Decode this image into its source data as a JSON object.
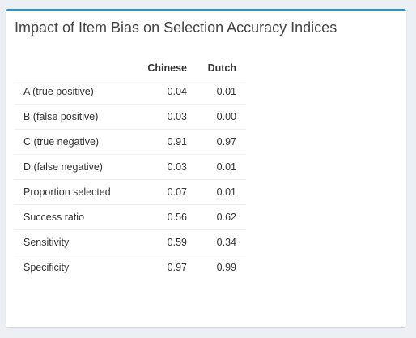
{
  "panel": {
    "title": "Impact of Item Bias on Selection Accuracy Indices",
    "accent_color": "#3c8dbc"
  },
  "table": {
    "columns": [
      "",
      "Chinese",
      "Dutch"
    ],
    "rows": [
      {
        "label": "A (true positive)",
        "chinese": "0.04",
        "dutch": "0.01"
      },
      {
        "label": "B (false positive)",
        "chinese": "0.03",
        "dutch": "0.00"
      },
      {
        "label": "C (true negative)",
        "chinese": "0.91",
        "dutch": "0.97"
      },
      {
        "label": "D (false negative)",
        "chinese": "0.03",
        "dutch": "0.01"
      },
      {
        "label": "Proportion selected",
        "chinese": "0.07",
        "dutch": "0.01"
      },
      {
        "label": "Success ratio",
        "chinese": "0.56",
        "dutch": "0.62"
      },
      {
        "label": "Sensitivity",
        "chinese": "0.59",
        "dutch": "0.34"
      },
      {
        "label": "Specificity",
        "chinese": "0.97",
        "dutch": "0.99"
      }
    ]
  }
}
